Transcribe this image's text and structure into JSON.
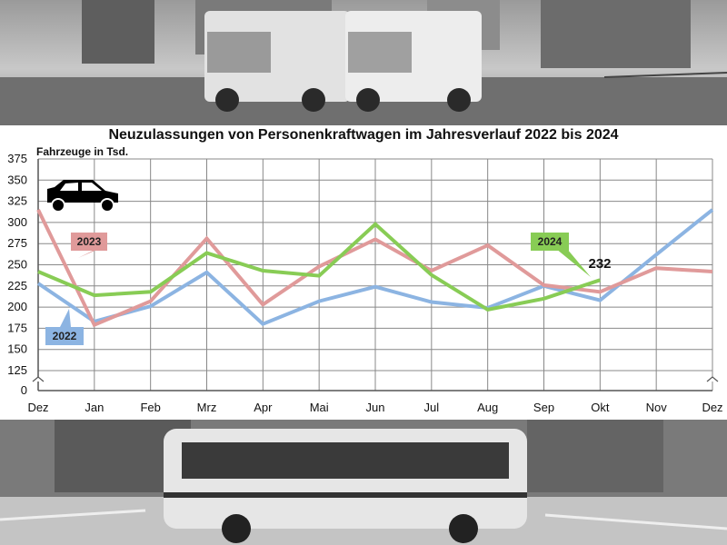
{
  "chart_data": {
    "type": "line",
    "title": "Neuzulassungen von Personenkraftwagen im Jahresverlauf 2022 bis 2024",
    "ylabel": "Fahrzeuge in Tsd.",
    "xlabel": "",
    "categories": [
      "Dez",
      "Jan",
      "Feb",
      "Mrz",
      "Apr",
      "Mai",
      "Jun",
      "Jul",
      "Aug",
      "Sep",
      "Okt",
      "Nov",
      "Dez"
    ],
    "yticks": [
      0,
      125,
      150,
      175,
      200,
      225,
      250,
      275,
      300,
      325,
      350,
      375
    ],
    "y_axis_break": true,
    "ylim": [
      0,
      375
    ],
    "grid": true,
    "series": [
      {
        "name": "2022",
        "color": "#8cb4e2",
        "values": [
          228,
          183,
          201,
          241,
          180,
          207,
          224,
          206,
          199,
          225,
          208,
          262,
          315
        ]
      },
      {
        "name": "2023",
        "color": "#e09a9a",
        "values": [
          315,
          179,
          207,
          281,
          203,
          248,
          280,
          243,
          273,
          226,
          218,
          246,
          242
        ]
      },
      {
        "name": "2024",
        "color": "#88cc55",
        "values": [
          242,
          214,
          218,
          264,
          243,
          237,
          298,
          238,
          197,
          210,
          232,
          null,
          null
        ]
      }
    ],
    "annotations": [
      {
        "text": "232"
      }
    ]
  },
  "icons": {
    "car": "car-icon",
    "bus_photo": "bus-photo",
    "trucks_photo": "trucks-photo"
  }
}
